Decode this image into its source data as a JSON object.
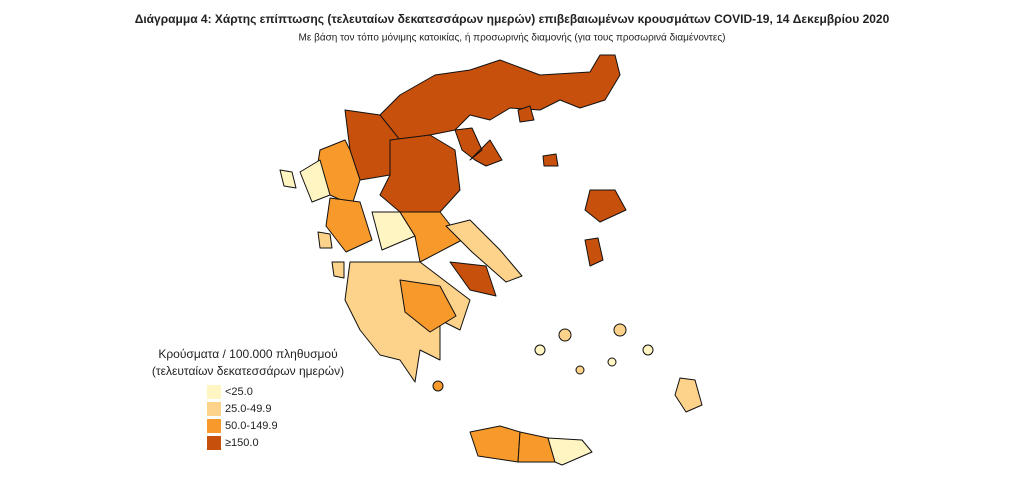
{
  "header": {
    "title": "Διάγραμμα 4: Χάρτης επίπτωσης (τελευταίων δεκατεσσάρων ημερών) επιβεβαιωμένων κρουσμάτων COVID-19, 14 Δεκεμβρίου 2020",
    "subtitle": "Με βάση τον τόπο μόνιμης κατοικίας, ή προσωρινής διαμονής (για τους προσωρινά διαμένοντες)"
  },
  "legend": {
    "title_lines": [
      "Κρούσματα / 100.000 πληθυσμού",
      "(τελευταίων δεκατεσσάρων ημερών)"
    ],
    "items": [
      {
        "label": "<25.0",
        "color": "#fff5c2"
      },
      {
        "label": "25.0-49.9",
        "color": "#fdd38c"
      },
      {
        "label": "50.0-149.9",
        "color": "#f7992b"
      },
      {
        "label": "≥150.0",
        "color": "#c8500d"
      }
    ]
  }
}
